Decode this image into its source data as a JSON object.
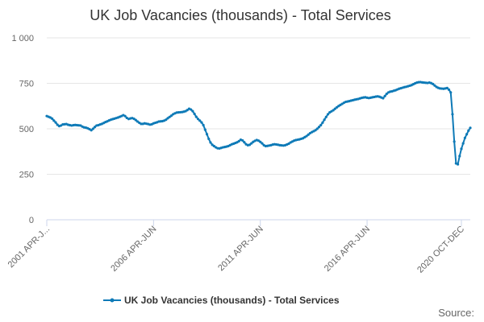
{
  "chart_data": {
    "type": "line",
    "title": "UK Job Vacancies (thousands) - Total Services",
    "xlabel": "",
    "ylabel": "",
    "ylim": [
      0,
      1000
    ],
    "yticks": [
      0,
      250,
      500,
      750,
      1000
    ],
    "ytick_labels": [
      "0",
      "250",
      "500",
      "750",
      "1 000"
    ],
    "xtick_labels": [
      "2001 APR-J...",
      "2006 APR-JUN",
      "2011 APR-JUN",
      "2016 APR-JUN",
      "2020 OCT-DEC"
    ],
    "xtick_indices": [
      0,
      60,
      120,
      180,
      233
    ],
    "grid": true,
    "legend_position": "bottom",
    "color": "#0e7ab7",
    "series": [
      {
        "name": "UK Job Vacancies (thousands) - Total Services",
        "values": [
          570,
          566,
          562,
          556,
          545,
          535,
          522,
          515,
          518,
          524,
          525,
          526,
          522,
          520,
          518,
          520,
          521,
          520,
          519,
          518,
          512,
          508,
          506,
          503,
          498,
          492,
          500,
          510,
          518,
          520,
          524,
          527,
          532,
          537,
          541,
          546,
          550,
          553,
          556,
          559,
          562,
          566,
          570,
          575,
          570,
          560,
          554,
          557,
          559,
          555,
          548,
          540,
          533,
          527,
          527,
          530,
          528,
          526,
          523,
          525,
          530,
          533,
          536,
          540,
          541,
          542,
          545,
          550,
          558,
          565,
          572,
          580,
          585,
          589,
          590,
          591,
          592,
          594,
          597,
          603,
          610,
          606,
          597,
          582,
          566,
          554,
          545,
          535,
          520,
          495,
          470,
          445,
          425,
          412,
          405,
          398,
          393,
          392,
          395,
          398,
          400,
          402,
          405,
          410,
          415,
          418,
          422,
          426,
          432,
          440,
          436,
          426,
          415,
          410,
          412,
          420,
          428,
          434,
          438,
          435,
          428,
          420,
          410,
          405,
          406,
          408,
          410,
          413,
          415,
          414,
          412,
          410,
          409,
          408,
          410,
          414,
          418,
          425,
          430,
          435,
          438,
          440,
          442,
          445,
          448,
          454,
          460,
          468,
          476,
          482,
          487,
          492,
          500,
          510,
          520,
          534,
          550,
          565,
          580,
          590,
          596,
          602,
          610,
          618,
          625,
          631,
          637,
          643,
          648,
          650,
          652,
          655,
          657,
          660,
          662,
          664,
          667,
          670,
          672,
          673,
          671,
          669,
          671,
          673,
          675,
          677,
          678,
          676,
          672,
          668,
          680,
          692,
          700,
          704,
          706,
          709,
          712,
          716,
          720,
          723,
          726,
          729,
          731,
          734,
          737,
          740,
          745,
          750,
          754,
          756,
          757,
          755,
          754,
          753,
          752,
          754,
          751,
          746,
          738,
          730,
          725,
          722,
          721,
          720,
          722,
          724,
          715,
          700,
          580,
          430,
          310,
          305,
          350,
          390,
          420,
          450,
          470,
          490,
          505
        ]
      }
    ],
    "legend": {
      "label": "UK Job Vacancies (thousands) - Total Services"
    },
    "source_label": "Source:"
  }
}
